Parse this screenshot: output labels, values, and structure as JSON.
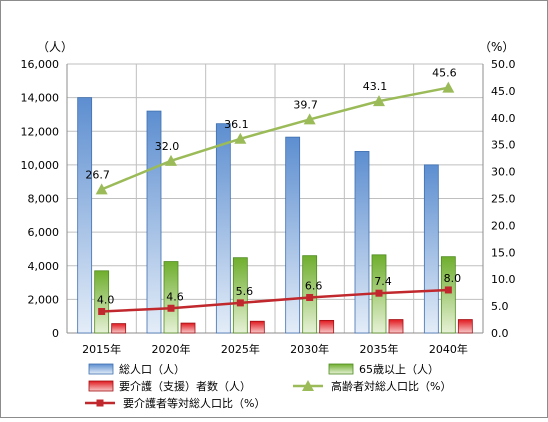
{
  "chart_data": {
    "type": "bar",
    "title": "",
    "categories": [
      "2015年",
      "2020年",
      "2025年",
      "2030年",
      "2035年",
      "2040年"
    ],
    "y_left": {
      "unit": "（人）",
      "range": [
        0,
        16000
      ],
      "step": 2000,
      "ticks": [
        "0",
        "2,000",
        "4,000",
        "6,000",
        "8,000",
        "10,000",
        "12,000",
        "14,000",
        "16,000"
      ]
    },
    "y_right": {
      "unit": "（%）",
      "range": [
        0,
        50
      ],
      "step": 5,
      "ticks": [
        "0.0",
        "5.0",
        "10.0",
        "15.0",
        "20.0",
        "25.0",
        "30.0",
        "35.0",
        "40.0",
        "45.0",
        "50.0"
      ]
    },
    "grid": true,
    "legend_position": "bottom",
    "series": [
      {
        "name": "総人口（人）",
        "kind": "bar",
        "axis": "left",
        "color": "#7ea6da",
        "values": [
          14000,
          13200,
          12450,
          11650,
          10800,
          10000
        ]
      },
      {
        "name": "65歳以上（人）",
        "kind": "bar",
        "axis": "left",
        "color": "#8dc04e",
        "values": [
          3700,
          4250,
          4480,
          4600,
          4650,
          4540
        ]
      },
      {
        "name": "要介護（支援）者数（人）",
        "kind": "bar",
        "axis": "left",
        "color": "#e0191f",
        "values": [
          560,
          590,
          700,
          750,
          800,
          800
        ]
      },
      {
        "name": "高齢者対総人口比（%）",
        "kind": "line",
        "axis": "right",
        "color": "#9bbb59",
        "values": [
          26.7,
          32.0,
          36.1,
          39.7,
          43.1,
          45.6
        ],
        "labels": [
          "26.7",
          "32.0",
          "36.1",
          "39.7",
          "43.1",
          "45.6"
        ]
      },
      {
        "name": "要介護者等対総人口比（%）",
        "kind": "line",
        "axis": "right",
        "color": "#c0282d",
        "values": [
          4.0,
          4.6,
          5.6,
          6.6,
          7.4,
          8.0
        ],
        "labels": [
          "4.0",
          "4.6",
          "5.6",
          "6.6",
          "7.4",
          "8.0"
        ]
      }
    ]
  }
}
